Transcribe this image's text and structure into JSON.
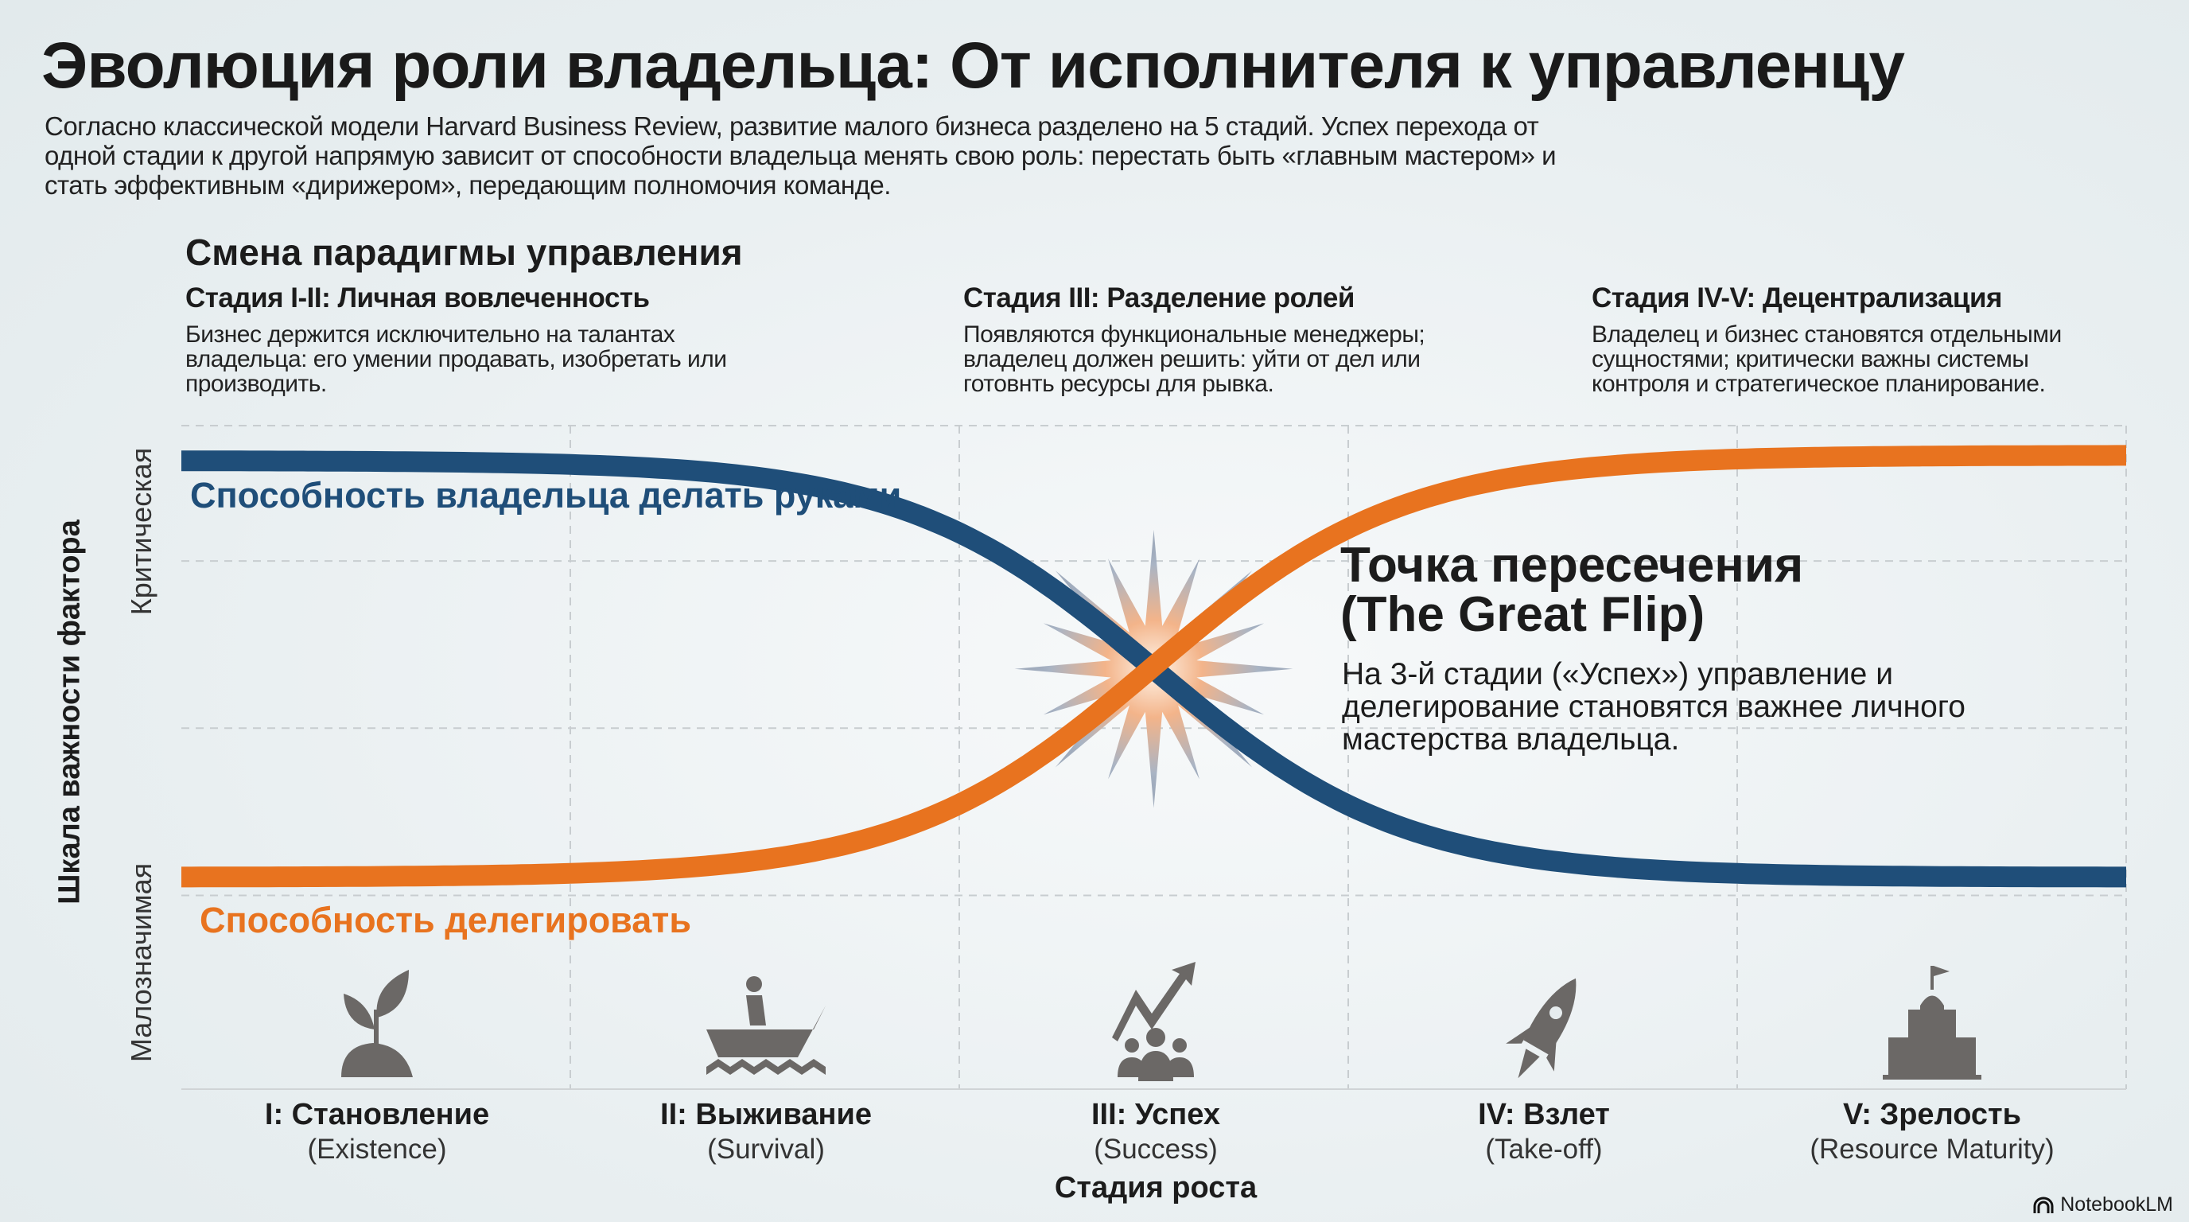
{
  "title": "Эволюция роли владельца: От исполнителя к управленцу",
  "intro": "Согласно классической модели Harvard Business Review, развитие малого бизнеса разделено на 5 стадий. Успех перехода от одной стадии к другой напрямую зависит от способности владельца менять свою роль: перестать быть «главным мастером» и стать эффективным «дирижером», передающим полномочия команде.",
  "paradigm_heading": "Смена парадигмы управления",
  "stages": [
    {
      "title": "Стадия I-II: Личная вовлеченность",
      "text": "Бизнес держится исключительно на талантах владельца: его умении продавать, изобретать или производить."
    },
    {
      "title": "Стадия III: Разделение ролей",
      "text": "Появляются функциональные менеджеры; владелец должен решить: уйти от дел или готовнть ресурсы для рывка."
    },
    {
      "title": "Стадия IV-V: Децентрализация",
      "text": "Владелец и бизнес становятся отдельными сущностями; критически важны системы контроля и стратегическое планирование."
    }
  ],
  "chart_data": {
    "type": "line",
    "xlabel": "Стадия роста",
    "ylabel": "Шкала важности фактора",
    "y_high_label": "Критическая",
    "y_low_label": "Малозначимая",
    "categories": [
      {
        "name": "I: Становление",
        "sub": "(Existence)",
        "icon": "sprout-icon"
      },
      {
        "name": "II: Выживание",
        "sub": "(Survival)",
        "icon": "rowing-boat-icon"
      },
      {
        "name": "III: Успех",
        "sub": "(Success)",
        "icon": "growth-team-icon"
      },
      {
        "name": "IV: Взлет",
        "sub": "(Take-off)",
        "icon": "rocket-icon"
      },
      {
        "name": "V: Зрелость",
        "sub": "(Resource Maturity)",
        "icon": "headquarters-icon"
      }
    ],
    "x_range": [
      0,
      5
    ],
    "y_range": [
      0,
      1
    ],
    "crossing_x": 2.5,
    "series": [
      {
        "name": "Способность владельца делать руками",
        "color": "#1f4e79",
        "start": 0.95,
        "end": 0.18,
        "trend": "decreasing"
      },
      {
        "name": "Способность делегировать",
        "color": "#e8731f",
        "start": 0.18,
        "end": 0.96,
        "trend": "increasing"
      }
    ],
    "annotation": {
      "title": "Точка пересечения (The Great Flip)",
      "text": "На 3-й стадии («Успех») управление и делегирование становятся важнее личного мастерства владельца."
    }
  },
  "brand": "NotebookLM"
}
